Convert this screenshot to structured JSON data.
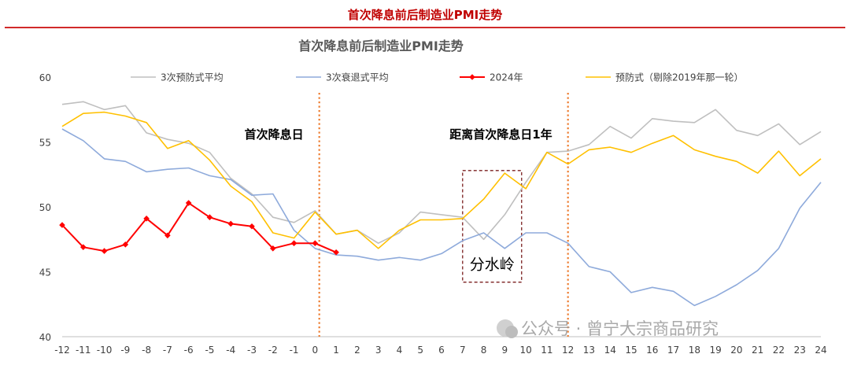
{
  "header": {
    "title": "首次降息前后制造业PMI走势"
  },
  "watermark": {
    "text": "公众号 · 曾宁大宗商品研究"
  },
  "chart_data": {
    "type": "line",
    "title": "首次降息前后制造业PMI走势",
    "xlabel": "",
    "ylabel": "",
    "x": [
      -12,
      -11,
      -10,
      -9,
      -8,
      -7,
      -6,
      -5,
      -4,
      -3,
      -2,
      -1,
      0,
      1,
      2,
      3,
      4,
      5,
      6,
      7,
      8,
      9,
      10,
      11,
      12,
      13,
      14,
      15,
      16,
      17,
      18,
      19,
      20,
      21,
      22,
      23,
      24
    ],
    "ylim": [
      40,
      60
    ],
    "yticks": [
      40,
      45,
      50,
      55,
      60
    ],
    "grid": false,
    "legend": "top",
    "series": [
      {
        "name": "3次预防式平均",
        "color": "#bfbfbf",
        "marker": "none",
        "values": [
          57.9,
          58.1,
          57.5,
          57.8,
          55.7,
          55.2,
          54.9,
          54.2,
          52.2,
          51.0,
          49.2,
          48.8,
          49.7,
          47.9,
          48.2,
          47.2,
          48.0,
          49.6,
          49.4,
          49.2,
          47.5,
          49.4,
          51.9,
          54.2,
          54.3,
          54.8,
          56.2,
          55.3,
          56.8,
          56.6,
          56.5,
          57.5,
          55.9,
          55.5,
          56.4,
          54.8,
          55.8
        ]
      },
      {
        "name": "3次衰退式平均",
        "color": "#8eaadb",
        "marker": "none",
        "values": [
          56.0,
          55.1,
          53.7,
          53.5,
          52.7,
          52.9,
          53.0,
          52.4,
          52.1,
          50.9,
          51.0,
          48.2,
          46.8,
          46.3,
          46.2,
          45.9,
          46.1,
          45.9,
          46.4,
          47.4,
          48.0,
          46.8,
          48.0,
          48.0,
          47.2,
          45.4,
          45.0,
          43.4,
          43.8,
          43.5,
          42.4,
          43.1,
          44.0,
          45.1,
          46.8,
          49.9,
          51.9
        ]
      },
      {
        "name": "2024年",
        "color": "#ff0000",
        "marker": "diamond",
        "values": [
          48.6,
          46.9,
          46.6,
          47.1,
          49.1,
          47.8,
          50.3,
          49.2,
          48.7,
          48.5,
          46.8,
          47.2,
          47.2,
          46.5,
          null,
          null,
          null,
          null,
          null,
          null,
          null,
          null,
          null,
          null,
          null,
          null,
          null,
          null,
          null,
          null,
          null,
          null,
          null,
          null,
          null,
          null,
          null
        ]
      },
      {
        "name": "预防式（剔除2019年那一轮）",
        "color": "#ffc000",
        "marker": "none",
        "values": [
          56.2,
          57.2,
          57.3,
          57.0,
          56.5,
          54.5,
          55.1,
          53.6,
          51.6,
          50.4,
          48.0,
          47.6,
          49.6,
          47.9,
          48.2,
          46.8,
          48.2,
          49.0,
          49.0,
          49.1,
          50.6,
          52.6,
          51.4,
          54.2,
          53.3,
          54.4,
          54.6,
          54.2,
          54.9,
          55.5,
          54.4,
          53.9,
          53.5,
          52.6,
          54.3,
          52.4,
          53.7
        ]
      }
    ],
    "vlines": [
      {
        "x": 0.2,
        "label": "首次降息日"
      },
      {
        "x": 12.0,
        "label": "距离首次降息日1年"
      }
    ],
    "box": {
      "x_from": 7.0,
      "x_to": 9.8,
      "y_from": 44.2,
      "y_to": 52.8,
      "label": "分水岭"
    }
  }
}
